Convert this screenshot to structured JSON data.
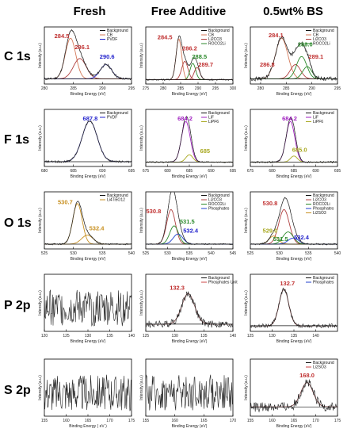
{
  "columns": [
    "Fresh",
    "Free Additive",
    "0.5wt% BS"
  ],
  "rows": [
    "C 1s",
    "F 1s",
    "O 1s",
    "P 2p",
    "S 2p"
  ],
  "colors": {
    "background_line": "#111111",
    "CB": "#d47a5a",
    "PVDF": "#2222cc",
    "Li2CO3": "#b04040",
    "ROCO2Li": "#2c8a2c",
    "LiF": "#a020c0",
    "LiPF6": "#a8a820",
    "LiTiO": "#c89020",
    "Phosphates": "#2040cc",
    "Li2SO3": "#c89020",
    "PhosphatesUnit": "#cc4444",
    "ann_red": "#c03030",
    "ann_green": "#2c8a2c",
    "ann_blue": "#2222cc",
    "ann_purple": "#a020c0",
    "ann_yellow": "#a8a820",
    "ann_orange": "#c89020"
  },
  "chart_data": [
    {
      "type": "line",
      "row": "C 1s",
      "column": "Fresh",
      "xlabel": "Binding Energy (eV)",
      "ylabel": "Intensity (a.u.)",
      "xlim": [
        280,
        295
      ],
      "xticks": [
        280,
        285,
        290,
        295
      ],
      "legend": [
        "Background",
        "CB",
        "PVDF"
      ],
      "legend_keys": [
        "background_line",
        "CB",
        "PVDF"
      ],
      "peaks": [
        {
          "center": 284.5,
          "height": 1.0,
          "width": 0.9,
          "color": "CB"
        },
        {
          "center": 286.1,
          "height": 0.5,
          "width": 1.1,
          "color": "Li2CO3"
        },
        {
          "center": 290.6,
          "height": 0.35,
          "width": 1.0,
          "color": "PVDF"
        }
      ],
      "noise": 0.03,
      "baseline": 0.05,
      "annotations": [
        {
          "text": "284.5",
          "x": 283.0,
          "y": 1.05,
          "color": "ann_red"
        },
        {
          "text": "286.1",
          "x": 286.5,
          "y": 0.78,
          "color": "ann_red"
        },
        {
          "text": "290.6",
          "x": 290.8,
          "y": 0.55,
          "color": "ann_blue"
        }
      ]
    },
    {
      "type": "line",
      "row": "C 1s",
      "column": "Free Additive",
      "xlabel": "Binding Energy (eV)",
      "ylabel": "Intensity (a.u.)",
      "xlim": [
        275,
        300
      ],
      "xticks": [
        275,
        280,
        285,
        290,
        295,
        300
      ],
      "legend": [
        "Background",
        "CB",
        "Li2CO3",
        "ROCO2Li"
      ],
      "legend_keys": [
        "background_line",
        "CB",
        "Li2CO3",
        "ROCO2Li"
      ],
      "peaks": [
        {
          "center": 284.5,
          "height": 1.0,
          "width": 0.8,
          "color": "CB"
        },
        {
          "center": 286.2,
          "height": 0.45,
          "width": 0.9,
          "color": "Li2CO3"
        },
        {
          "center": 288.5,
          "height": 0.4,
          "width": 0.8,
          "color": "ROCO2Li"
        },
        {
          "center": 289.7,
          "height": 0.3,
          "width": 0.8,
          "color": "Li2CO3"
        }
      ],
      "noise": 0.02,
      "baseline": 0.03,
      "annotations": [
        {
          "text": "284.5",
          "x": 280.5,
          "y": 1.03,
          "color": "ann_red"
        },
        {
          "text": "286.2",
          "x": 287.6,
          "y": 0.75,
          "color": "ann_red"
        },
        {
          "text": "288.5",
          "x": 290.4,
          "y": 0.55,
          "color": "ann_green"
        },
        {
          "text": "289.7",
          "x": 292.2,
          "y": 0.35,
          "color": "ann_red"
        }
      ]
    },
    {
      "type": "line",
      "row": "C 1s",
      "column": "0.5wt% BS",
      "xlabel": "Binding Energy (eV)",
      "ylabel": "Intensity (a.u.)",
      "xlim": [
        278,
        295
      ],
      "xticks": [
        280,
        285,
        290,
        295
      ],
      "legend": [
        "Background",
        "CB",
        "Li2CO3",
        "ROCO2Li"
      ],
      "legend_keys": [
        "background_line",
        "CB",
        "Li2CO3",
        "ROCO2Li"
      ],
      "peaks": [
        {
          "center": 284.1,
          "height": 1.0,
          "width": 1.2,
          "color": "CB"
        },
        {
          "center": 286.8,
          "height": 0.35,
          "width": 1.0,
          "color": "Li2CO3"
        },
        {
          "center": 288.0,
          "height": 0.55,
          "width": 1.0,
          "color": "ROCO2Li"
        },
        {
          "center": 289.1,
          "height": 0.3,
          "width": 0.9,
          "color": "ROCO2Li"
        }
      ],
      "noise": 0.05,
      "baseline": 0.05,
      "annotations": [
        {
          "text": "284.1",
          "x": 283.0,
          "y": 1.07,
          "color": "ann_red"
        },
        {
          "text": "286.8",
          "x": 281.3,
          "y": 0.35,
          "color": "ann_red"
        },
        {
          "text": "288.0",
          "x": 288.7,
          "y": 0.85,
          "color": "ann_green"
        },
        {
          "text": "289.1",
          "x": 290.8,
          "y": 0.55,
          "color": "ann_red"
        }
      ]
    },
    {
      "type": "line",
      "row": "F 1s",
      "column": "Fresh",
      "xlabel": "Binding Energy (eV)",
      "ylabel": "Intensity (a.u.)",
      "xlim": [
        680,
        695
      ],
      "xticks": [
        680,
        685,
        690,
        695
      ],
      "legend": [
        "Background",
        "PVDF"
      ],
      "legend_keys": [
        "background_line",
        "PVDF"
      ],
      "peaks": [
        {
          "center": 687.8,
          "height": 1.0,
          "width": 1.3,
          "color": "PVDF"
        }
      ],
      "noise": 0.025,
      "baseline": 0.04,
      "annotations": [
        {
          "text": "687.8",
          "x": 687.9,
          "y": 1.05,
          "color": "ann_blue"
        }
      ]
    },
    {
      "type": "line",
      "row": "F 1s",
      "column": "Free Additive",
      "xlabel": "Binding Energy (eV)",
      "ylabel": "Intensity (a.u.)",
      "xlim": [
        675,
        695
      ],
      "xticks": [
        675,
        680,
        685,
        690,
        695
      ],
      "legend": [
        "Background",
        "LiF",
        "LiPF6"
      ],
      "legend_keys": [
        "background_line",
        "LiF",
        "LiPF6"
      ],
      "peaks": [
        {
          "center": 684.2,
          "height": 1.0,
          "width": 1.0,
          "color": "LiF"
        },
        {
          "center": 685.0,
          "height": 0.18,
          "width": 0.8,
          "color": "LiPF6"
        }
      ],
      "noise": 0.015,
      "baseline": 0.03,
      "annotations": [
        {
          "text": "684.2",
          "x": 684.0,
          "y": 1.05,
          "color": "ann_purple"
        },
        {
          "text": "685",
          "x": 688.6,
          "y": 0.25,
          "color": "ann_yellow"
        }
      ]
    },
    {
      "type": "line",
      "row": "F 1s",
      "column": "0.5wt% BS",
      "xlabel": "Binding Energy (eV)",
      "ylabel": "Intensity (a.u.)",
      "xlim": [
        675,
        695
      ],
      "xticks": [
        675,
        680,
        685,
        690,
        695
      ],
      "legend": [
        "Background",
        "LiF",
        "LiPF6"
      ],
      "legend_keys": [
        "background_line",
        "LiF",
        "LiPF6"
      ],
      "peaks": [
        {
          "center": 684.2,
          "height": 1.0,
          "width": 1.0,
          "color": "LiF"
        },
        {
          "center": 685.0,
          "height": 0.15,
          "width": 0.8,
          "color": "LiPF6"
        }
      ],
      "noise": 0.02,
      "baseline": 0.03,
      "annotations": [
        {
          "text": "684.2",
          "x": 684.0,
          "y": 1.05,
          "color": "ann_purple"
        },
        {
          "text": "685.0",
          "x": 686.3,
          "y": 0.28,
          "color": "ann_yellow"
        }
      ]
    },
    {
      "type": "line",
      "row": "O 1s",
      "column": "Fresh",
      "xlabel": "Binding Energy (eV)",
      "ylabel": "Intensity (a.u.)",
      "xlim": [
        525,
        540
      ],
      "xticks": [
        525,
        530,
        535,
        540
      ],
      "legend": [
        "Background",
        "Li4Ti5O12"
      ],
      "legend_keys": [
        "background_line",
        "LiTiO"
      ],
      "peaks": [
        {
          "center": 530.7,
          "height": 1.0,
          "width": 0.8,
          "color": "LiTiO"
        },
        {
          "center": 532.4,
          "height": 0.22,
          "width": 1.0,
          "color": "LiTiO"
        }
      ],
      "noise": 0.02,
      "baseline": 0.04,
      "annotations": [
        {
          "text": "530.7",
          "x": 528.6,
          "y": 1.03,
          "color": "ann_orange"
        },
        {
          "text": "532.4",
          "x": 534.0,
          "y": 0.38,
          "color": "ann_orange"
        }
      ]
    },
    {
      "type": "line",
      "row": "O 1s",
      "column": "Free Additive",
      "xlabel": "Binding Energy (eV)",
      "ylabel": "Intensity (a.u.)",
      "xlim": [
        525,
        545
      ],
      "xticks": [
        525,
        530,
        535,
        540,
        545
      ],
      "legend": [
        "Background",
        "Li2CO3",
        "ROCO2Li",
        "Phosphates"
      ],
      "legend_keys": [
        "background_line",
        "Li2CO3",
        "ROCO2Li",
        "Phosphates"
      ],
      "peaks": [
        {
          "center": 530.8,
          "height": 0.85,
          "width": 1.0,
          "color": "Li2CO3"
        },
        {
          "center": 531.5,
          "height": 0.45,
          "width": 1.0,
          "color": "ROCO2Li"
        },
        {
          "center": 532.4,
          "height": 0.25,
          "width": 1.1,
          "color": "Phosphates"
        }
      ],
      "noise": 0.015,
      "baseline": 0.04,
      "annotations": [
        {
          "text": "530.8",
          "x": 526.8,
          "y": 0.8,
          "color": "ann_red"
        },
        {
          "text": "531.5",
          "x": 534.5,
          "y": 0.55,
          "color": "ann_green"
        },
        {
          "text": "532.4",
          "x": 535.3,
          "y": 0.32,
          "color": "ann_blue"
        }
      ]
    },
    {
      "type": "line",
      "row": "O 1s",
      "column": "0.5wt% BS",
      "xlabel": "Binding Energy (eV)",
      "ylabel": "Intensity (a.u.)",
      "xlim": [
        525,
        540
      ],
      "xticks": [
        525,
        530,
        535,
        540
      ],
      "legend": [
        "Background",
        "Li2CO3",
        "ROCO2Li",
        "Phosphates",
        "Li2SO3"
      ],
      "legend_keys": [
        "background_line",
        "Li2CO3",
        "ROCO2Li",
        "Phosphates",
        "Li2SO3"
      ],
      "peaks": [
        {
          "center": 530.8,
          "height": 0.85,
          "width": 0.9,
          "color": "Li2CO3"
        },
        {
          "center": 529.0,
          "height": 0.2,
          "width": 0.8,
          "color": "Li2SO3"
        },
        {
          "center": 531.5,
          "height": 0.3,
          "width": 0.9,
          "color": "ROCO2Li"
        },
        {
          "center": 532.4,
          "height": 0.15,
          "width": 0.9,
          "color": "Phosphates"
        }
      ],
      "noise": 0.02,
      "baseline": 0.04,
      "annotations": [
        {
          "text": "530.8",
          "x": 528.4,
          "y": 1.0,
          "color": "ann_red"
        },
        {
          "text": "529.0",
          "x": 528.4,
          "y": 0.32,
          "color": "ann_yellow"
        },
        {
          "text": "531.5",
          "x": 530.2,
          "y": 0.12,
          "color": "ann_green"
        },
        {
          "text": "532.4",
          "x": 533.8,
          "y": 0.16,
          "color": "ann_blue"
        }
      ]
    },
    {
      "type": "line",
      "row": "P 2p",
      "column": "Fresh",
      "xlabel": "Binding Energy (eV)",
      "ylabel": "Intensity (a.u.)",
      "xlim": [
        120,
        140
      ],
      "xticks": [
        120,
        125,
        130,
        135,
        140
      ],
      "legend": [],
      "legend_keys": [],
      "peaks": [],
      "noise": 0.45,
      "baseline": 0.5,
      "annotations": []
    },
    {
      "type": "line",
      "row": "P 2p",
      "column": "Free Additive",
      "xlabel": "Binding Energy (eV)",
      "ylabel": "Intensity (a.u.)",
      "xlim": [
        125,
        140
      ],
      "xticks": [
        125,
        130,
        135,
        140
      ],
      "legend": [
        "Background",
        "Phosphates Unit"
      ],
      "legend_keys": [
        "background_line",
        "PhosphatesUnit"
      ],
      "peaks": [
        {
          "center": 132.3,
          "height": 0.75,
          "width": 1.1,
          "color": "PhosphatesUnit"
        }
      ],
      "noise": 0.09,
      "baseline": 0.1,
      "annotations": [
        {
          "text": "132.3",
          "x": 130.4,
          "y": 0.95,
          "color": "ann_red"
        }
      ]
    },
    {
      "type": "line",
      "row": "P 2p",
      "column": "0.5wt% BS",
      "xlabel": "Binding Energy (eV)",
      "ylabel": "Intensity (a.u.)",
      "xlim": [
        125,
        145
      ],
      "xticks": [
        125,
        130,
        135,
        140
      ],
      "legend": [
        "Background",
        "Phosphates"
      ],
      "legend_keys": [
        "background_line",
        "Phosphates"
      ],
      "peaks": [
        {
          "center": 132.7,
          "height": 0.9,
          "width": 1.1,
          "color": "PhosphatesUnit"
        }
      ],
      "noise": 0.05,
      "baseline": 0.06,
      "annotations": [
        {
          "text": "132.7",
          "x": 133.5,
          "y": 1.05,
          "color": "ann_red"
        }
      ]
    },
    {
      "type": "line",
      "row": "S 2p",
      "column": "Fresh",
      "xlabel": "Binding Energy ( eV )",
      "ylabel": "Intensity (a.u.)",
      "xlim": [
        155,
        175
      ],
      "xticks": [
        155,
        160,
        165,
        170,
        175
      ],
      "legend": [],
      "legend_keys": [],
      "peaks": [],
      "noise": 0.45,
      "baseline": 0.5,
      "annotations": []
    },
    {
      "type": "line",
      "row": "S 2p",
      "column": "Free Additive",
      "xlabel": "Binding Energy (eV)",
      "ylabel": "Intensity (a.u.)",
      "xlim": [
        155,
        170
      ],
      "xticks": [
        155,
        160,
        165,
        170
      ],
      "legend": [],
      "legend_keys": [],
      "peaks": [],
      "noise": 0.45,
      "baseline": 0.5,
      "annotations": []
    },
    {
      "type": "line",
      "row": "S 2p",
      "column": "0.5wt% BS",
      "xlabel": "Binding Energy (eV)",
      "ylabel": "Intensity (a.u.)",
      "xlim": [
        155,
        175
      ],
      "xticks": [
        155,
        160,
        165,
        170,
        175
      ],
      "legend": [
        "Background",
        "Li2SO3"
      ],
      "legend_keys": [
        "background_line",
        "PhosphatesUnit"
      ],
      "peaks": [
        {
          "center": 168.0,
          "height": 0.6,
          "width": 1.4,
          "color": "PhosphatesUnit"
        }
      ],
      "noise": 0.12,
      "baseline": 0.15,
      "annotations": [
        {
          "text": "168.0",
          "x": 168.0,
          "y": 0.88,
          "color": "ann_red"
        }
      ]
    }
  ]
}
